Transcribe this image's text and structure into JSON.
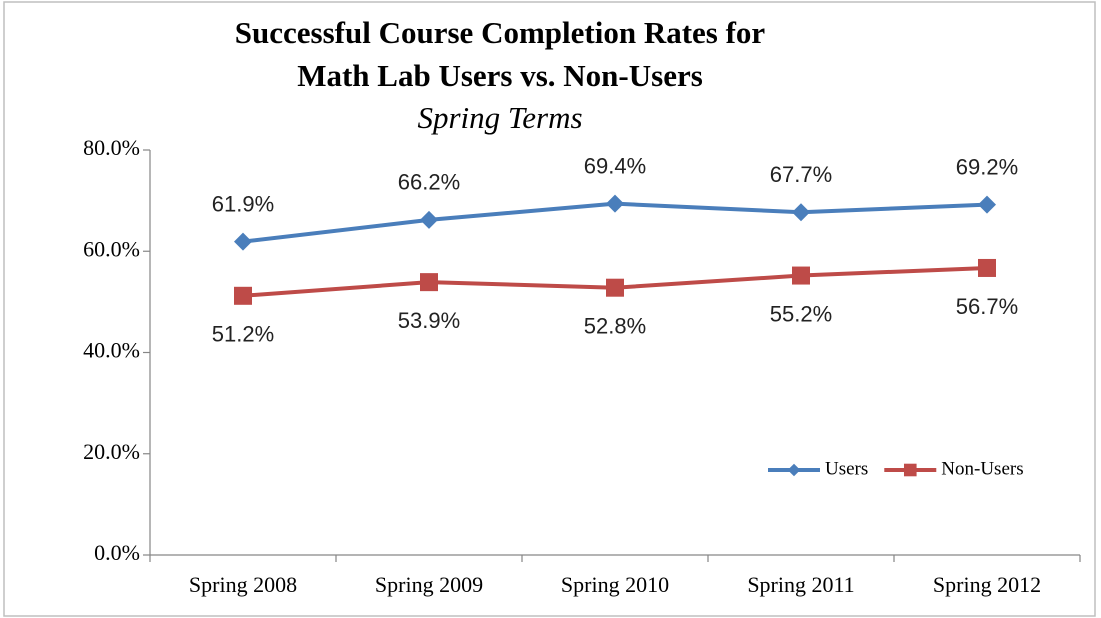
{
  "chart_data": {
    "type": "line",
    "title": [
      "Successful Course Completion Rates for",
      "Math Lab Users vs. Non-Users"
    ],
    "subtitle": "Spring Terms",
    "categories": [
      "Spring 2008",
      "Spring 2009",
      "Spring 2010",
      "Spring 2011",
      "Spring 2012"
    ],
    "series": [
      {
        "name": "Users",
        "color": "#4a7ebb",
        "marker": "diamond",
        "label_position": "above",
        "values": [
          61.9,
          66.2,
          69.4,
          67.7,
          69.2
        ],
        "value_labels": [
          "61.9%",
          "66.2%",
          "69.4%",
          "67.7%",
          "69.2%"
        ]
      },
      {
        "name": "Non-Users",
        "color": "#be4b48",
        "marker": "square",
        "label_position": "below",
        "values": [
          51.2,
          53.9,
          52.8,
          55.2,
          56.7
        ],
        "value_labels": [
          "51.2%",
          "53.9%",
          "52.8%",
          "55.2%",
          "56.7%"
        ]
      }
    ],
    "ylim": [
      0,
      80
    ],
    "yticks": [
      {
        "value": 0,
        "label": "0.0%"
      },
      {
        "value": 20,
        "label": "20.0%"
      },
      {
        "value": 40,
        "label": "40.0%"
      },
      {
        "value": 60,
        "label": "60.0%"
      },
      {
        "value": 80,
        "label": "80.0%"
      }
    ],
    "grid": false,
    "legend": "lower right"
  }
}
